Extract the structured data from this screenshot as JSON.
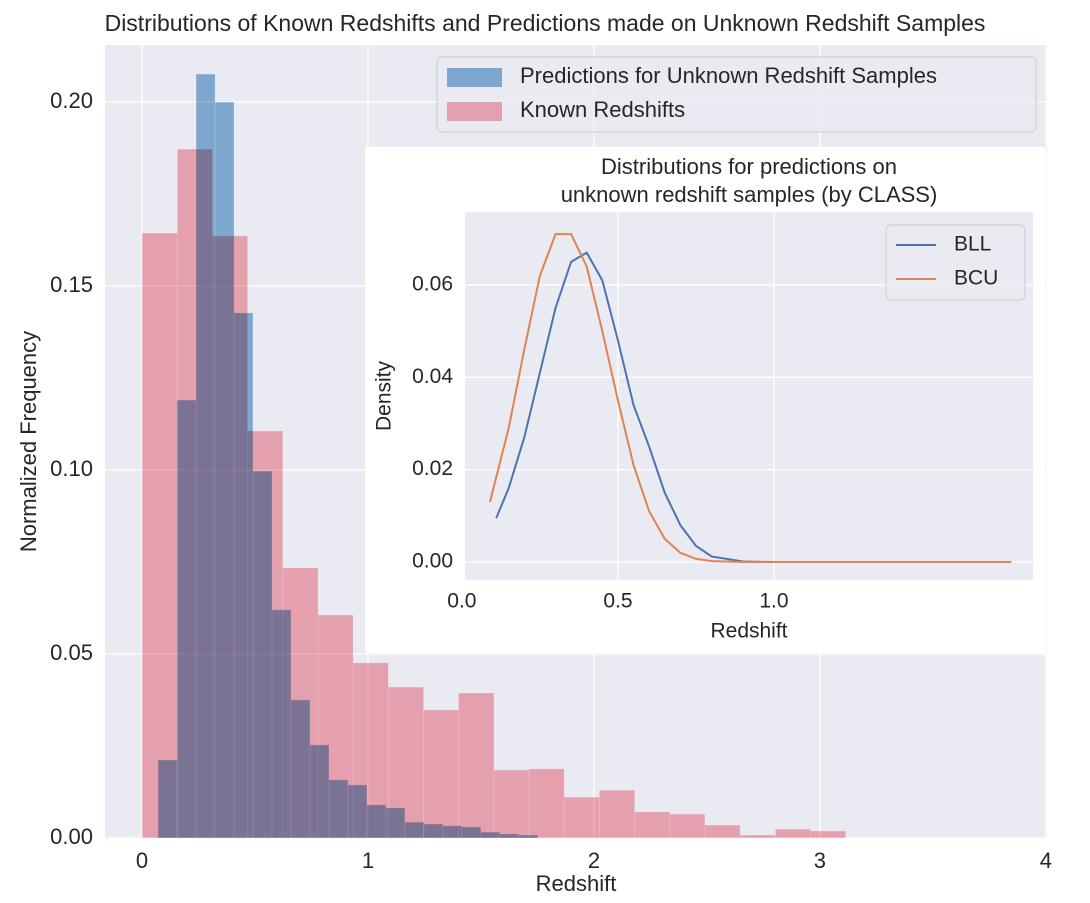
{
  "chart_data": [
    {
      "type": "histogram",
      "title": "Distributions of Known Redshifts and Predictions made on Unknown Redshift Samples",
      "xlabel": "Redshift",
      "ylabel": "Normalized Frequency",
      "xlim": [
        -0.164,
        4.005
      ],
      "ylim": [
        0,
        0.2155
      ],
      "xticks": [
        0,
        1,
        2,
        3,
        4
      ],
      "yticks": [
        {
          "value": 0,
          "label": "0.00"
        },
        0.05,
        {
          "value": 0.1,
          "label": "0.10"
        },
        0.15,
        {
          "value": 0.2,
          "label": "0.20"
        }
      ],
      "grid": true,
      "legend": "upper right",
      "alpha": 0.6,
      "series": [
        {
          "name": "Predictions for Unknown Redshift Samples",
          "color": "#3a85c2",
          "bins": [
            0.071,
            0.155,
            0.239,
            0.323,
            0.407,
            0.491,
            0.575,
            0.659,
            0.743,
            0.827,
            0.911,
            0.995,
            1.079,
            1.163,
            1.247,
            1.331,
            1.415,
            1.499,
            1.583,
            1.667,
            1.751
          ],
          "values": [
            0.0212,
            0.119,
            0.2076,
            0.2,
            0.1427,
            0.0997,
            0.062,
            0.0375,
            0.0253,
            0.0158,
            0.0144,
            0.009,
            0.0082,
            0.0043,
            0.0038,
            0.0033,
            0.003,
            0.0016,
            0.0011,
            0.0008
          ]
        },
        {
          "name": "Known Redshifts",
          "color": "#f57a86",
          "bins": [
            0,
            0.156,
            0.311,
            0.467,
            0.623,
            0.779,
            0.934,
            1.09,
            1.246,
            1.401,
            1.557,
            1.713,
            1.868,
            2.024,
            2.18,
            2.336,
            2.491,
            2.647,
            2.803,
            2.958,
            3.114
          ],
          "values": [
            0.1644,
            0.1872,
            0.1636,
            0.1106,
            0.0734,
            0.0606,
            0.0476,
            0.041,
            0.0348,
            0.0394,
            0.0185,
            0.0188,
            0.0111,
            0.013,
            0.0071,
            0.0065,
            0.0035,
            0.0008,
            0.0024,
            0.0019
          ]
        }
      ]
    },
    {
      "type": "line",
      "title": [
        "Distributions for predictions on",
        "unknown redshift samples (by CLASS)"
      ],
      "xlabel": "Redshift",
      "ylabel": "Density",
      "xlim": [
        0.01,
        1.83
      ],
      "ylim": [
        -0.0039,
        0.0758
      ],
      "xticks": [
        {
          "value": 0,
          "label": "0.0"
        },
        0.5,
        {
          "value": 1,
          "label": "1.0"
        }
      ],
      "yticks": [
        {
          "value": 0,
          "label": "0.00"
        },
        0.02,
        0.04,
        0.06
      ],
      "grid": true,
      "legend": "upper right",
      "series": [
        {
          "name": "BLL",
          "color": "#4c72b0",
          "x": [
            0.11,
            0.15,
            0.2,
            0.25,
            0.3,
            0.35,
            0.4,
            0.45,
            0.5,
            0.55,
            0.6,
            0.65,
            0.7,
            0.75,
            0.8,
            0.9,
            1.0,
            1.2,
            1.4,
            1.6,
            1.76
          ],
          "values": [
            0.0095,
            0.016,
            0.027,
            0.041,
            0.055,
            0.065,
            0.067,
            0.061,
            0.048,
            0.034,
            0.025,
            0.015,
            0.008,
            0.0035,
            0.0012,
            0.0001,
            0,
            0,
            0,
            0,
            0
          ]
        },
        {
          "name": "BCU",
          "color": "#dd8452",
          "x": [
            0.09,
            0.15,
            0.2,
            0.25,
            0.3,
            0.35,
            0.4,
            0.45,
            0.5,
            0.55,
            0.6,
            0.65,
            0.7,
            0.75,
            0.8,
            0.9,
            1.0,
            1.2,
            1.4,
            1.6,
            1.76
          ],
          "values": [
            0.013,
            0.029,
            0.046,
            0.062,
            0.071,
            0.071,
            0.064,
            0.05,
            0.035,
            0.021,
            0.011,
            0.005,
            0.002,
            0.0007,
            0.0002,
            0,
            0,
            0,
            0,
            0,
            0
          ]
        }
      ]
    }
  ]
}
